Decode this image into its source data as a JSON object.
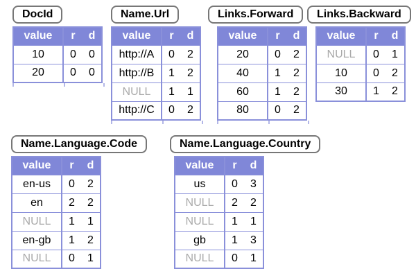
{
  "colors": {
    "background": "#ffffff",
    "header_bg": "#8087d8",
    "grid_border": "#8a90da",
    "null_text": "#a9a9a9",
    "title_border": "#777777",
    "text": "#000000",
    "header_text": "#ffffff"
  },
  "columns": {
    "value": "value",
    "r": "r",
    "d": "d"
  },
  "tables": [
    {
      "title": "DocId",
      "rows": [
        {
          "value": "10",
          "r": 0,
          "d": 0
        },
        {
          "value": "20",
          "r": 0,
          "d": 0
        }
      ]
    },
    {
      "title": "Name.Url",
      "rows": [
        {
          "value": "http://A",
          "r": 0,
          "d": 2
        },
        {
          "value": "http://B",
          "r": 1,
          "d": 2
        },
        {
          "value": "NULL",
          "r": 1,
          "d": 1
        },
        {
          "value": "http://C",
          "r": 0,
          "d": 2
        }
      ]
    },
    {
      "title": "Links.Forward",
      "rows": [
        {
          "value": "20",
          "r": 0,
          "d": 2
        },
        {
          "value": "40",
          "r": 1,
          "d": 2
        },
        {
          "value": "60",
          "r": 1,
          "d": 2
        },
        {
          "value": "80",
          "r": 0,
          "d": 2
        }
      ]
    },
    {
      "title": "Links.Backward",
      "rows": [
        {
          "value": "NULL",
          "r": 0,
          "d": 1
        },
        {
          "value": "10",
          "r": 0,
          "d": 2
        },
        {
          "value": "30",
          "r": 1,
          "d": 2
        }
      ]
    },
    {
      "title": "Name.Language.Code",
      "rows": [
        {
          "value": "en-us",
          "r": 0,
          "d": 2
        },
        {
          "value": "en",
          "r": 2,
          "d": 2
        },
        {
          "value": "NULL",
          "r": 1,
          "d": 1
        },
        {
          "value": "en-gb",
          "r": 1,
          "d": 2
        },
        {
          "value": "NULL",
          "r": 0,
          "d": 1
        }
      ]
    },
    {
      "title": "Name.Language.Country",
      "rows": [
        {
          "value": "us",
          "r": 0,
          "d": 3
        },
        {
          "value": "NULL",
          "r": 2,
          "d": 2
        },
        {
          "value": "NULL",
          "r": 1,
          "d": 1
        },
        {
          "value": "gb",
          "r": 1,
          "d": 3
        },
        {
          "value": "NULL",
          "r": 0,
          "d": 1
        }
      ]
    }
  ]
}
